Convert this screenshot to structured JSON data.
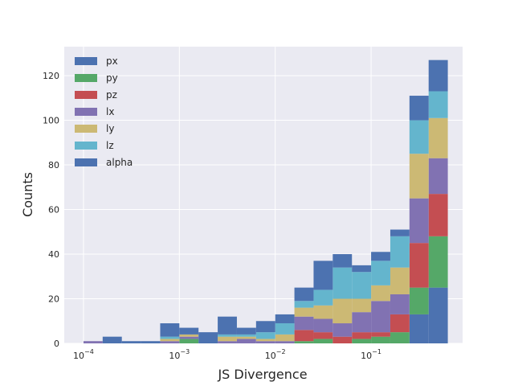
{
  "chart_data": {
    "type": "bar",
    "style": "stacked histogram",
    "xlabel": "JS Divergence",
    "ylabel": "Counts",
    "x_scale": "log",
    "x_ticks": [
      0.0001,
      0.001,
      0.01,
      0.1
    ],
    "x_tick_labels": [
      {
        "base": "10",
        "exp": "−4"
      },
      {
        "base": "10",
        "exp": "−3"
      },
      {
        "base": "10",
        "exp": "−2"
      },
      {
        "base": "10",
        "exp": "−1"
      }
    ],
    "y_ticks": [
      0,
      20,
      40,
      60,
      80,
      100,
      120
    ],
    "ylim": [
      0,
      133
    ],
    "xlim": [
      6.3e-05,
      0.9
    ],
    "grid": true,
    "legend_position": "upper-left",
    "bin_edges": [
      0.0001,
      0.00015849,
      0.00025119,
      0.00039811,
      0.00063096,
      0.001,
      0.0015849,
      0.0025119,
      0.0039811,
      0.0063096,
      0.01,
      0.015849,
      0.025119,
      0.039811,
      0.063096,
      0.1,
      0.15849,
      0.25119,
      0.39811,
      0.63096
    ],
    "series": [
      {
        "name": "px",
        "color": "#4c72b0",
        "values": [
          0,
          0,
          0,
          0,
          0,
          0,
          0,
          0,
          0,
          0,
          0,
          0,
          0,
          0,
          0,
          0,
          0,
          13,
          25
        ]
      },
      {
        "name": "py",
        "color": "#55a868",
        "values": [
          0,
          0,
          0,
          0,
          0,
          2,
          0,
          0,
          0,
          0,
          0,
          1,
          2,
          0,
          2,
          3,
          5,
          12,
          23
        ]
      },
      {
        "name": "pz",
        "color": "#c44e52",
        "values": [
          0,
          0,
          0,
          0,
          0,
          0,
          0,
          0,
          0,
          0,
          0,
          5,
          3,
          3,
          3,
          2,
          8,
          20,
          19
        ]
      },
      {
        "name": "lx",
        "color": "#8172b2",
        "values": [
          1,
          0,
          0,
          0,
          1,
          1,
          0,
          1,
          2,
          1,
          1,
          6,
          6,
          6,
          9,
          14,
          9,
          20,
          16
        ]
      },
      {
        "name": "ly",
        "color": "#ccb974",
        "values": [
          0,
          0,
          0,
          0,
          1,
          1,
          0,
          2,
          1,
          1,
          3,
          4,
          6,
          11,
          6,
          7,
          12,
          20,
          18
        ]
      },
      {
        "name": "lz",
        "color": "#64b5cd",
        "values": [
          0,
          0,
          0,
          0,
          1,
          0,
          0,
          1,
          1,
          3,
          5,
          3,
          7,
          14,
          12,
          11,
          14,
          15,
          12
        ]
      },
      {
        "name": "alpha",
        "color": "#4c72b0",
        "values": [
          0,
          3,
          1,
          1,
          6,
          3,
          5,
          8,
          3,
          5,
          4,
          6,
          13,
          6,
          3,
          4,
          3,
          11,
          14
        ]
      }
    ]
  }
}
